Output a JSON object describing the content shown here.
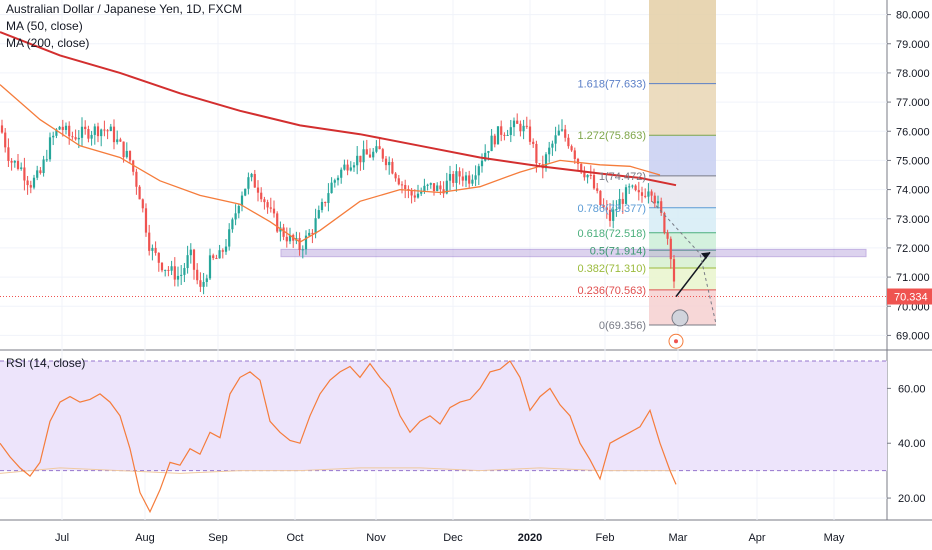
{
  "chart_data": [
    {
      "type": "candlestick",
      "title": "Australian Dollar / Japanese Yen, 1D, FXCM",
      "indicators": [
        "MA (50, close)",
        "MA (200, close)"
      ],
      "ylim": [
        68.5,
        80.5
      ],
      "y_ticks": [
        "69.000",
        "70.000",
        "71.000",
        "72.000",
        "73.000",
        "74.000",
        "75.000",
        "76.000",
        "77.000",
        "78.000",
        "79.000",
        "80.000"
      ],
      "last_price": "70.334",
      "last_price_value": 70.334,
      "time_ticks": [
        "Jul",
        "Aug",
        "Sep",
        "Oct",
        "Nov",
        "Dec",
        "2020",
        "Feb",
        "Mar",
        "Apr",
        "May"
      ],
      "fib_levels": [
        {
          "label": "1.618(77.633)",
          "value": 77.633,
          "color": "#5b7fc7"
        },
        {
          "label": "1.272(75.863)",
          "value": 75.863,
          "color": "#7ea64b"
        },
        {
          "label": "1(74.472)",
          "value": 74.472,
          "color": "#787b86"
        },
        {
          "label": "0.786(73.377)",
          "value": 73.377,
          "color": "#5b9bd5"
        },
        {
          "label": "0.618(72.518)",
          "value": 72.518,
          "color": "#4caf7d"
        },
        {
          "label": "0.5(71.914)",
          "value": 71.914,
          "color": "#3d9970"
        },
        {
          "label": "0.382(71.310)",
          "value": 71.31,
          "color": "#9bbb3c"
        },
        {
          "label": "0.236(70.563)",
          "value": 70.563,
          "color": "#e05050"
        },
        {
          "label": "0(69.356)",
          "value": 69.356,
          "color": "#787b86"
        }
      ],
      "ma50": [
        [
          0,
          77.6
        ],
        [
          40,
          76.4
        ],
        [
          80,
          75.5
        ],
        [
          120,
          75.1
        ],
        [
          160,
          74.3
        ],
        [
          200,
          73.8
        ],
        [
          240,
          73.5
        ],
        [
          270,
          72.9
        ],
        [
          300,
          72.2
        ],
        [
          320,
          72.6
        ],
        [
          360,
          73.6
        ],
        [
          400,
          74.0
        ],
        [
          440,
          73.9
        ],
        [
          480,
          74.1
        ],
        [
          520,
          74.6
        ],
        [
          560,
          75.0
        ],
        [
          600,
          74.85
        ],
        [
          630,
          74.8
        ],
        [
          660,
          74.5
        ]
      ],
      "ma200": [
        [
          0,
          79.4
        ],
        [
          60,
          78.6
        ],
        [
          120,
          78.0
        ],
        [
          180,
          77.3
        ],
        [
          240,
          76.7
        ],
        [
          300,
          76.2
        ],
        [
          360,
          75.9
        ],
        [
          420,
          75.5
        ],
        [
          480,
          75.1
        ],
        [
          540,
          74.8
        ],
        [
          600,
          74.55
        ],
        [
          640,
          74.4
        ],
        [
          676,
          74.15
        ]
      ],
      "close_path": [
        [
          0,
          76.2
        ],
        [
          10,
          75.0
        ],
        [
          20,
          74.8
        ],
        [
          30,
          74.2
        ],
        [
          40,
          74.5
        ],
        [
          50,
          75.6
        ],
        [
          60,
          76.2
        ],
        [
          70,
          75.8
        ],
        [
          80,
          75.9
        ],
        [
          90,
          76.0
        ],
        [
          100,
          76.1
        ],
        [
          110,
          76.0
        ],
        [
          120,
          75.5
        ],
        [
          130,
          75.0
        ],
        [
          140,
          73.8
        ],
        [
          150,
          72.0
        ],
        [
          160,
          71.5
        ],
        [
          170,
          71.2
        ],
        [
          180,
          71.0
        ],
        [
          190,
          71.8
        ],
        [
          200,
          70.5
        ],
        [
          210,
          71.5
        ],
        [
          220,
          71.7
        ],
        [
          230,
          72.5
        ],
        [
          240,
          73.8
        ],
        [
          250,
          74.4
        ],
        [
          260,
          74.0
        ],
        [
          270,
          73.2
        ],
        [
          280,
          72.6
        ],
        [
          290,
          72.3
        ],
        [
          300,
          72.0
        ],
        [
          310,
          72.5
        ],
        [
          320,
          73.2
        ],
        [
          330,
          74.1
        ],
        [
          340,
          74.6
        ],
        [
          350,
          75.0
        ],
        [
          360,
          75.1
        ],
        [
          370,
          75.2
        ],
        [
          380,
          75.3
        ],
        [
          390,
          74.9
        ],
        [
          400,
          74.3
        ],
        [
          410,
          73.8
        ],
        [
          420,
          73.9
        ],
        [
          430,
          74.1
        ],
        [
          440,
          74.0
        ],
        [
          450,
          74.3
        ],
        [
          460,
          74.5
        ],
        [
          470,
          74.4
        ],
        [
          480,
          75.0
        ],
        [
          490,
          75.6
        ],
        [
          500,
          76.0
        ],
        [
          510,
          76.1
        ],
        [
          520,
          76.2
        ],
        [
          530,
          75.8
        ],
        [
          540,
          74.6
        ],
        [
          550,
          75.4
        ],
        [
          560,
          76.0
        ],
        [
          570,
          75.6
        ],
        [
          580,
          74.8
        ],
        [
          590,
          74.4
        ],
        [
          600,
          73.5
        ],
        [
          610,
          73.0
        ],
        [
          620,
          73.6
        ],
        [
          630,
          74.0
        ],
        [
          640,
          73.7
        ],
        [
          650,
          74.2
        ],
        [
          660,
          73.2
        ],
        [
          670,
          72.1
        ],
        [
          676,
          70.33
        ]
      ],
      "price_range": {
        "x1": 281,
        "x2": 866,
        "y1": 71.7,
        "y2": 71.95
      },
      "extension_zone": {
        "x1": 649,
        "x2": 716
      },
      "projection_arrow": {
        "from": [
          676,
          70.33
        ],
        "to": [
          710,
          71.85
        ]
      }
    },
    {
      "type": "line",
      "title": "RSI (14, close)",
      "ylim": [
        12,
        74
      ],
      "band": [
        30,
        70
      ],
      "y_ticks": [
        "20.00",
        "40.00",
        "60.00"
      ],
      "values": [
        [
          0,
          40
        ],
        [
          10,
          35
        ],
        [
          20,
          31
        ],
        [
          30,
          28
        ],
        [
          40,
          33
        ],
        [
          50,
          48
        ],
        [
          60,
          55
        ],
        [
          70,
          57
        ],
        [
          80,
          55
        ],
        [
          90,
          56
        ],
        [
          100,
          58
        ],
        [
          110,
          55
        ],
        [
          120,
          50
        ],
        [
          130,
          38
        ],
        [
          140,
          22
        ],
        [
          150,
          15
        ],
        [
          160,
          23
        ],
        [
          170,
          33
        ],
        [
          180,
          32
        ],
        [
          190,
          38
        ],
        [
          200,
          36
        ],
        [
          210,
          44
        ],
        [
          220,
          42
        ],
        [
          230,
          58
        ],
        [
          240,
          64
        ],
        [
          250,
          66
        ],
        [
          260,
          63
        ],
        [
          270,
          48
        ],
        [
          280,
          44
        ],
        [
          290,
          41
        ],
        [
          300,
          40
        ],
        [
          310,
          50
        ],
        [
          320,
          58
        ],
        [
          330,
          63
        ],
        [
          340,
          66
        ],
        [
          350,
          68
        ],
        [
          360,
          64
        ],
        [
          370,
          69
        ],
        [
          380,
          64
        ],
        [
          390,
          60
        ],
        [
          400,
          50
        ],
        [
          410,
          44
        ],
        [
          420,
          48
        ],
        [
          430,
          50
        ],
        [
          440,
          47
        ],
        [
          450,
          53
        ],
        [
          460,
          55
        ],
        [
          470,
          56
        ],
        [
          480,
          60
        ],
        [
          490,
          66
        ],
        [
          500,
          67
        ],
        [
          510,
          70
        ],
        [
          520,
          64
        ],
        [
          530,
          52
        ],
        [
          540,
          57
        ],
        [
          550,
          60
        ],
        [
          560,
          54
        ],
        [
          570,
          50
        ],
        [
          580,
          40
        ],
        [
          590,
          34
        ],
        [
          600,
          27
        ],
        [
          610,
          40
        ],
        [
          620,
          42
        ],
        [
          630,
          44
        ],
        [
          640,
          46
        ],
        [
          650,
          52
        ],
        [
          660,
          40
        ],
        [
          670,
          30
        ],
        [
          676,
          25
        ]
      ],
      "ma_values": [
        [
          0,
          29
        ],
        [
          60,
          31
        ],
        [
          120,
          30
        ],
        [
          180,
          29
        ],
        [
          240,
          30
        ],
        [
          300,
          30
        ],
        [
          360,
          31
        ],
        [
          420,
          31
        ],
        [
          480,
          30
        ],
        [
          540,
          31
        ],
        [
          600,
          30
        ],
        [
          676,
          30
        ]
      ]
    }
  ]
}
